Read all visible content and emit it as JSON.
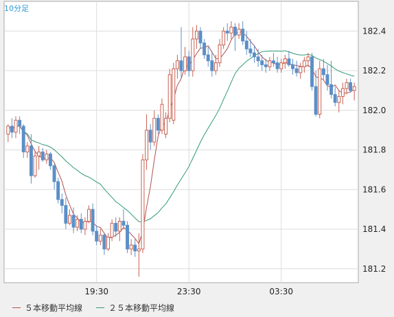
{
  "timeframe_label": "10分足",
  "legend": [
    {
      "label": "５本移動平均線",
      "color": "#b05050"
    },
    {
      "label": "２５本移動平均線",
      "color": "#2f9a74"
    }
  ],
  "colors": {
    "up_candle": "#c86050",
    "down_candle": "#5b8fc7",
    "ma5": "#b05050",
    "ma25": "#2f9a74",
    "grid": "#dcdcdc",
    "panel_bg": "#ffffff",
    "outer_bg": "#f0f0f0"
  },
  "chart_data": {
    "type": "candlestick",
    "y_ticks": [
      "182.4",
      "182.2",
      "182.0",
      "181.8",
      "181.6",
      "181.4",
      "181.2"
    ],
    "y_tick_values": [
      182.4,
      182.2,
      182.0,
      181.8,
      181.6,
      181.4,
      181.2
    ],
    "ylim": [
      181.13,
      182.55
    ],
    "x_ticks": [
      "19:30",
      "23:30",
      "03:30"
    ],
    "x_tick_index": [
      23,
      47,
      71
    ],
    "candle_count": 91,
    "candles": [
      [
        181.88,
        181.93,
        181.84,
        181.92
      ],
      [
        181.92,
        181.96,
        181.86,
        181.89
      ],
      [
        181.89,
        181.97,
        181.86,
        181.95
      ],
      [
        181.95,
        181.97,
        181.88,
        181.92
      ],
      [
        181.92,
        181.93,
        181.76,
        181.79
      ],
      [
        181.79,
        181.84,
        181.76,
        181.82
      ],
      [
        181.82,
        181.88,
        181.63,
        181.67
      ],
      [
        181.67,
        181.79,
        181.66,
        181.77
      ],
      [
        181.77,
        181.82,
        181.7,
        181.79
      ],
      [
        181.79,
        181.81,
        181.74,
        181.75
      ],
      [
        181.75,
        181.8,
        181.73,
        181.78
      ],
      [
        181.78,
        181.79,
        181.7,
        181.72
      ],
      [
        181.72,
        181.73,
        181.6,
        181.64
      ],
      [
        181.64,
        181.66,
        181.53,
        181.55
      ],
      [
        181.55,
        181.58,
        181.48,
        181.52
      ],
      [
        181.52,
        181.56,
        181.4,
        181.43
      ],
      [
        181.43,
        181.5,
        181.42,
        181.47
      ],
      [
        181.47,
        181.51,
        181.38,
        181.41
      ],
      [
        181.41,
        181.47,
        181.39,
        181.45
      ],
      [
        181.45,
        181.48,
        181.38,
        181.4
      ],
      [
        181.4,
        181.46,
        181.37,
        181.44
      ],
      [
        181.44,
        181.52,
        181.43,
        181.5
      ],
      [
        181.5,
        181.53,
        181.37,
        181.39
      ],
      [
        181.39,
        181.42,
        181.32,
        181.34
      ],
      [
        181.34,
        181.4,
        181.32,
        181.37
      ],
      [
        181.37,
        181.38,
        181.27,
        181.3
      ],
      [
        181.3,
        181.38,
        181.29,
        181.36
      ],
      [
        181.36,
        181.45,
        181.34,
        181.43
      ],
      [
        181.43,
        181.46,
        181.36,
        181.39
      ],
      [
        181.39,
        181.46,
        181.34,
        181.44
      ],
      [
        181.44,
        181.5,
        181.4,
        181.42
      ],
      [
        181.42,
        181.44,
        181.28,
        181.3
      ],
      [
        181.3,
        181.35,
        181.27,
        181.32
      ],
      [
        181.32,
        181.35,
        181.26,
        181.29
      ],
      [
        181.29,
        181.38,
        181.16,
        181.3
      ],
      [
        181.3,
        181.78,
        181.28,
        181.75
      ],
      [
        181.75,
        181.98,
        181.7,
        181.9
      ],
      [
        181.9,
        181.93,
        181.8,
        181.84
      ],
      [
        181.84,
        182.0,
        181.82,
        181.96
      ],
      [
        181.96,
        181.98,
        181.88,
        181.9
      ],
      [
        181.9,
        182.06,
        181.88,
        182.03
      ],
      [
        181.88,
        181.99,
        181.86,
        181.96
      ],
      [
        181.96,
        182.21,
        181.94,
        182.18
      ],
      [
        181.95,
        182.24,
        181.93,
        182.21
      ],
      [
        182.21,
        182.28,
        182.16,
        182.25
      ],
      [
        182.25,
        182.42,
        182.16,
        182.2
      ],
      [
        182.2,
        182.32,
        182.18,
        182.27
      ],
      [
        182.27,
        182.3,
        182.17,
        182.2
      ],
      [
        182.2,
        182.42,
        182.17,
        182.36
      ],
      [
        182.36,
        182.43,
        182.31,
        182.4
      ],
      [
        182.4,
        182.42,
        182.31,
        182.34
      ],
      [
        182.34,
        182.36,
        182.26,
        182.28
      ],
      [
        182.28,
        182.32,
        182.22,
        182.25
      ],
      [
        182.25,
        182.3,
        182.17,
        182.2
      ],
      [
        182.2,
        182.28,
        182.18,
        182.24
      ],
      [
        182.24,
        182.36,
        182.22,
        182.33
      ],
      [
        182.33,
        182.42,
        182.31,
        182.4
      ],
      [
        182.4,
        182.44,
        182.35,
        182.39
      ],
      [
        182.39,
        182.45,
        182.36,
        182.42
      ],
      [
        182.42,
        182.44,
        182.3,
        182.38
      ],
      [
        182.38,
        182.44,
        182.36,
        182.41
      ],
      [
        182.41,
        182.45,
        182.33,
        182.35
      ],
      [
        182.35,
        182.4,
        182.28,
        182.31
      ],
      [
        182.31,
        182.36,
        182.27,
        182.29
      ],
      [
        182.29,
        182.33,
        182.24,
        182.27
      ],
      [
        182.27,
        182.31,
        182.22,
        182.25
      ],
      [
        182.25,
        182.28,
        182.2,
        182.23
      ],
      [
        182.23,
        182.26,
        182.19,
        182.22
      ],
      [
        182.22,
        182.27,
        182.2,
        182.25
      ],
      [
        182.25,
        182.29,
        182.22,
        182.24
      ],
      [
        182.24,
        182.27,
        182.19,
        182.21
      ],
      [
        182.21,
        182.26,
        182.19,
        182.24
      ],
      [
        182.24,
        182.28,
        182.21,
        182.26
      ],
      [
        182.26,
        182.3,
        182.22,
        182.23
      ],
      [
        182.23,
        182.26,
        182.18,
        182.21
      ],
      [
        182.21,
        182.25,
        182.17,
        182.19
      ],
      [
        182.19,
        182.24,
        182.16,
        182.22
      ],
      [
        182.22,
        182.27,
        182.19,
        182.25
      ],
      [
        182.25,
        182.29,
        182.22,
        182.27
      ],
      [
        182.27,
        182.29,
        182.1,
        182.12
      ],
      [
        182.12,
        182.2,
        181.97,
        181.98
      ],
      [
        181.98,
        182.25,
        181.96,
        182.21
      ],
      [
        182.21,
        182.26,
        182.15,
        182.18
      ],
      [
        182.18,
        182.23,
        182.1,
        182.13
      ],
      [
        182.13,
        182.25,
        182.06,
        182.08
      ],
      [
        182.08,
        182.12,
        182.02,
        182.04
      ],
      [
        182.04,
        182.1,
        181.99,
        182.07
      ],
      [
        182.07,
        182.14,
        182.03,
        182.11
      ],
      [
        182.11,
        182.16,
        182.08,
        182.14
      ],
      [
        182.14,
        182.16,
        182.09,
        182.1
      ],
      [
        182.1,
        182.14,
        182.05,
        182.12
      ]
    ]
  }
}
